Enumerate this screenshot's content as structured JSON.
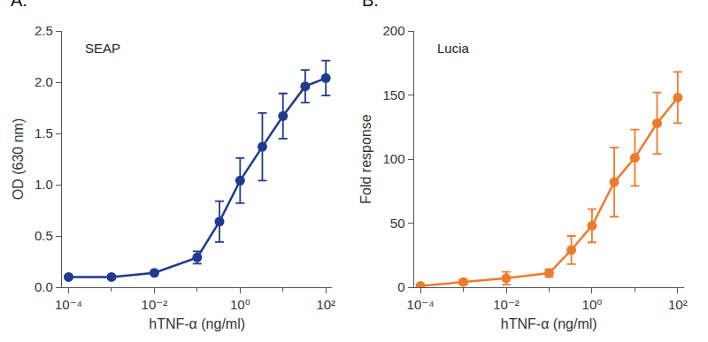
{
  "chart_data": [
    {
      "type": "scatter",
      "title": "A.",
      "x_label": "hTNF-α (ng/ml)",
      "y_label": "OD (630 nm)",
      "log": "x",
      "grid": false,
      "marker": "circle",
      "line_style": "solid",
      "xlim": [
        7e-05,
        140
      ],
      "xticks": [
        {
          "value": 0.0001,
          "label": "10⁻⁴"
        },
        {
          "value": 0.01,
          "label": "10⁻²"
        },
        {
          "value": 1,
          "label": "10⁰"
        },
        {
          "value": 100,
          "label": "10²"
        }
      ],
      "ylim": [
        0,
        2.5
      ],
      "yticks": [
        {
          "value": 0,
          "label": "0.0"
        },
        0.5,
        {
          "value": 1,
          "label": "1.0"
        },
        1.5,
        {
          "value": 2,
          "label": "2.0"
        },
        2.5
      ],
      "x": [
        0.0001,
        0.001,
        0.01,
        0.1,
        0.33,
        1,
        3.3,
        10,
        33,
        100
      ],
      "series": [
        {
          "name": "SEAP",
          "color": "#1f3a8f",
          "values": [
            0.1,
            0.1,
            0.14,
            0.29,
            0.64,
            1.04,
            1.37,
            1.67,
            1.96,
            2.04
          ],
          "errors": [
            0,
            0,
            0,
            0.06,
            0.2,
            0.22,
            0.33,
            0.22,
            0.16,
            0.17
          ]
        }
      ]
    },
    {
      "type": "scatter",
      "title": "B.",
      "x_label": "hTNF-α (ng/ml)",
      "y_label": "Fold response",
      "log": "x",
      "grid": false,
      "marker": "circle",
      "line_style": "solid",
      "xlim": [
        7e-05,
        140
      ],
      "xticks": [
        {
          "value": 0.0001,
          "label": "10⁻⁴"
        },
        {
          "value": 0.01,
          "label": "10⁻²"
        },
        {
          "value": 1,
          "label": "10⁰"
        },
        {
          "value": 100,
          "label": "10²"
        }
      ],
      "ylim": [
        0,
        200
      ],
      "yticks": [
        0,
        50,
        100,
        150,
        200
      ],
      "x": [
        0.0001,
        0.001,
        0.01,
        0.1,
        0.33,
        1,
        3.3,
        10,
        33,
        100
      ],
      "series": [
        {
          "name": "Lucia",
          "color": "#ee7b2c",
          "values": [
            1,
            4,
            7,
            11,
            29,
            48,
            82,
            101,
            128,
            148
          ],
          "errors": [
            0,
            2,
            5,
            3,
            11,
            13,
            27,
            22,
            24,
            20
          ]
        }
      ]
    }
  ]
}
